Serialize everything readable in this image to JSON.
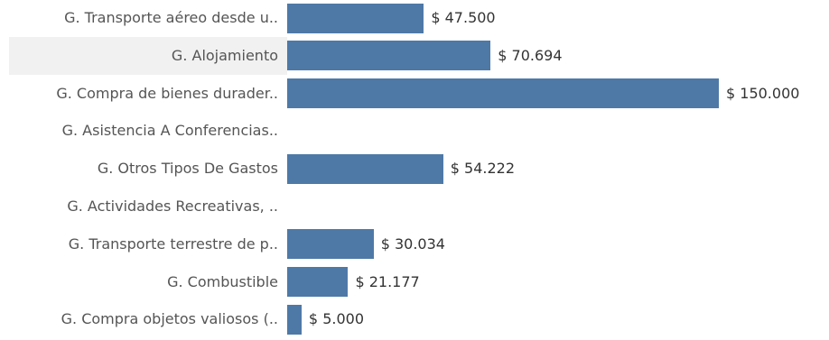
{
  "chart_data": {
    "type": "bar",
    "orientation": "horizontal",
    "categories": [
      "G. Transporte aéreo desde u..",
      "G. Alojamiento",
      "G. Compra de bienes durader..",
      "G. Asistencia A Conferencias..",
      "G. Otros Tipos De Gastos",
      "G. Actividades Recreativas, ..",
      "G. Transporte terrestre de p..",
      "G. Combustible",
      "G. Compra objetos valiosos (.."
    ],
    "values": [
      47500,
      70694,
      150000,
      null,
      54222,
      null,
      30034,
      21177,
      5000
    ],
    "value_labels": [
      "$ 47.500",
      "$ 70.694",
      "$ 150.000",
      "",
      "$ 54.222",
      "",
      "$ 30.034",
      "$ 21.177",
      "$ 5.000"
    ],
    "xlim": [
      0,
      150000
    ],
    "highlighted_category": "G. Alojamiento",
    "bar_color": "#4e79a7",
    "highlight_color": "#f1f1f1",
    "grid": false
  }
}
